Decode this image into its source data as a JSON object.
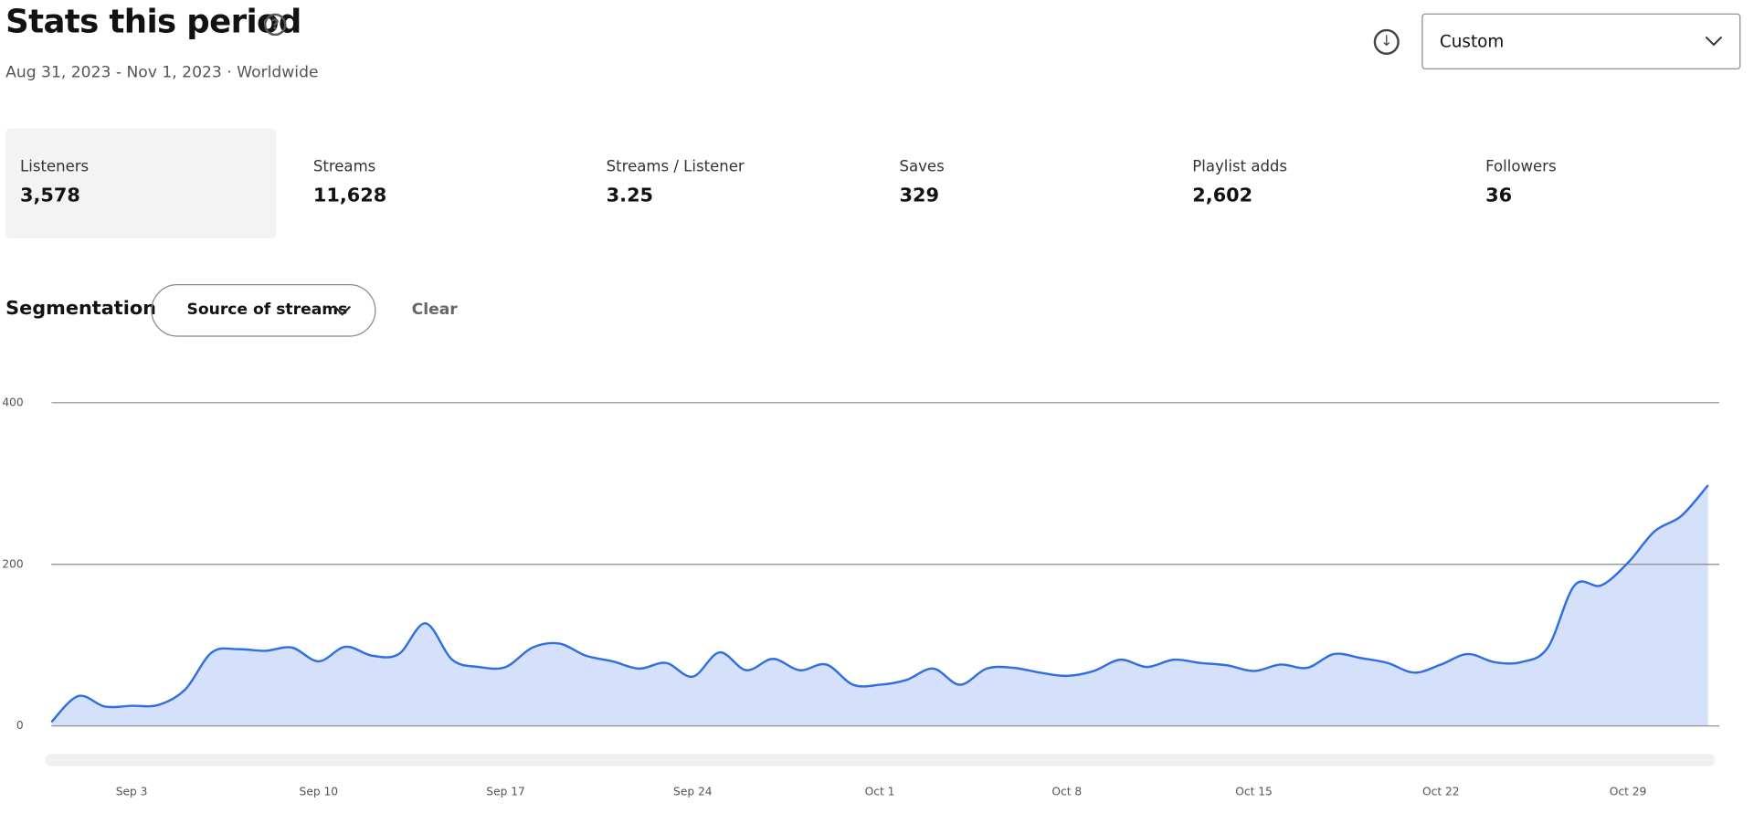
{
  "header": {
    "title": "Stats this period",
    "subtitle": "Aug 31, 2023 - Nov 1, 2023 · Worldwide",
    "range_select": "Custom"
  },
  "stats": [
    {
      "label": "Listeners",
      "value": "3,578"
    },
    {
      "label": "Streams",
      "value": "11,628"
    },
    {
      "label": "Streams / Listener",
      "value": "3.25"
    },
    {
      "label": "Saves",
      "value": "329"
    },
    {
      "label": "Playlist adds",
      "value": "2,602"
    },
    {
      "label": "Followers",
      "value": "36"
    }
  ],
  "segmentation": {
    "label": "Segmentation",
    "select": "Source of streams",
    "clear": "Clear"
  },
  "chart_data": {
    "type": "area",
    "color": "#2f6fe0",
    "fill": "#d5e1fa",
    "grid": true,
    "ylim": [
      0,
      400
    ],
    "yticks": [
      0,
      200,
      400
    ],
    "categories": [
      null,
      null,
      null,
      "Sep 3",
      null,
      null,
      null,
      null,
      null,
      null,
      "Sep 10",
      null,
      null,
      null,
      null,
      null,
      null,
      "Sep 17",
      null,
      null,
      null,
      null,
      null,
      null,
      "Sep 24",
      null,
      null,
      null,
      null,
      null,
      null,
      "Oct 1",
      null,
      null,
      null,
      null,
      null,
      null,
      "Oct 8",
      null,
      null,
      null,
      null,
      null,
      null,
      "Oct 15",
      null,
      null,
      null,
      null,
      null,
      null,
      "Oct 22",
      null,
      null,
      null,
      null,
      null,
      null,
      "Oct 29",
      null,
      null,
      null
    ],
    "values": [
      5,
      37,
      24,
      25,
      26,
      45,
      91,
      95,
      93,
      97,
      80,
      98,
      87,
      89,
      127,
      82,
      73,
      73,
      97,
      102,
      87,
      80,
      71,
      78,
      61,
      91,
      69,
      83,
      69,
      76,
      51,
      51,
      57,
      71,
      51,
      71,
      72,
      66,
      62,
      68,
      82,
      73,
      82,
      78,
      75,
      68,
      76,
      72,
      89,
      84,
      78,
      66,
      76,
      89,
      79,
      79,
      97,
      174,
      174,
      202,
      241,
      260,
      298
    ]
  }
}
